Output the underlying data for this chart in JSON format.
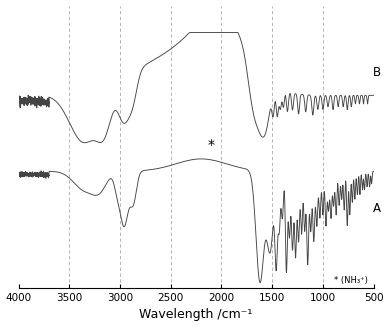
{
  "xlabel": "Wavelength /cm⁻¹",
  "dashed_lines": [
    3500,
    3000,
    2500,
    2000,
    1500,
    1000
  ],
  "xticks": [
    4000,
    3500,
    3000,
    2500,
    2000,
    1500,
    1000,
    500
  ],
  "label_A": "A",
  "label_B": "B",
  "star_label": "* (NH₃⁺)",
  "line_color": "#444444",
  "dashed_color": "#aaaaaa"
}
